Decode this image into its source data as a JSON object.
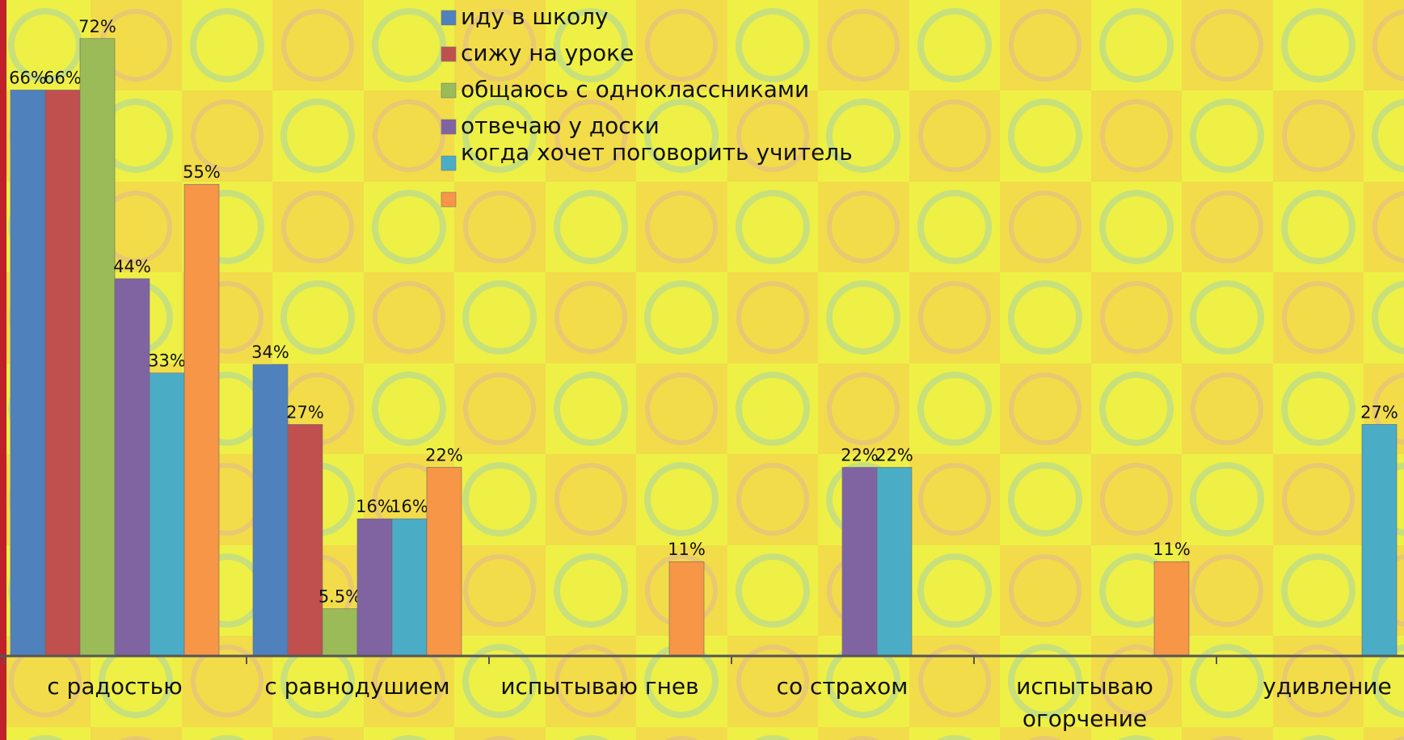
{
  "chart_data": {
    "type": "bar",
    "categories": [
      "с радостью",
      "с равнодушием",
      "испытываю гнев",
      "со страхом",
      "испытываю огорчение",
      "удивление"
    ],
    "series": [
      {
        "name": "иду в школу",
        "color": "#4f81bd",
        "values": [
          66,
          34,
          null,
          null,
          null,
          null
        ],
        "value_labels": [
          "66%",
          "34%",
          null,
          null,
          null,
          null
        ]
      },
      {
        "name": "сижу на уроке",
        "color": "#c0504d",
        "values": [
          66,
          27,
          null,
          null,
          null,
          null
        ],
        "value_labels": [
          "66%",
          "27%",
          null,
          null,
          null,
          null
        ]
      },
      {
        "name": "общаюсь с одноклассниками",
        "color": "#9bbb59",
        "values": [
          72,
          5.5,
          null,
          null,
          null,
          null
        ],
        "value_labels": [
          "72%",
          "5.5%",
          null,
          null,
          null,
          null
        ]
      },
      {
        "name": "отвечаю у доски",
        "color": "#8064a2",
        "values": [
          44,
          16,
          null,
          22,
          null,
          null
        ],
        "value_labels": [
          "44%",
          "16%",
          null,
          "22%",
          null,
          null
        ]
      },
      {
        "name": "когда хочет поговорить учитель",
        "color": "#4bacc6",
        "values": [
          33,
          16,
          null,
          22,
          null,
          27
        ],
        "value_labels": [
          "33%",
          "16%",
          null,
          "22%",
          null,
          "27%"
        ]
      },
      {
        "color": "#f79646",
        "values": [
          55,
          22,
          11,
          null,
          11,
          null
        ],
        "value_labels": [
          "55%",
          "22%",
          "11%",
          null,
          "11%",
          null
        ]
      }
    ],
    "ylim": [
      0,
      76.5
    ]
  }
}
